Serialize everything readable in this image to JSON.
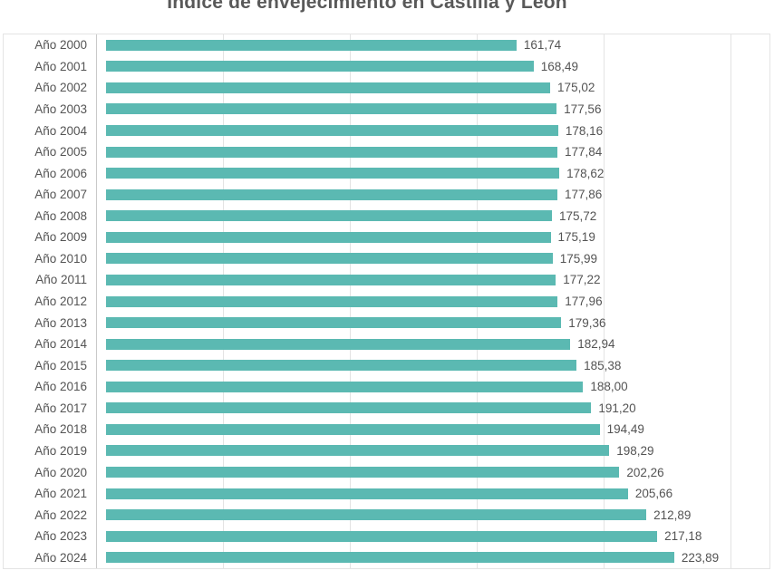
{
  "title": "Índice de envejecimiento en Castilla y León",
  "colors": {
    "bar": "#5bb9b2",
    "title_text": "#595959",
    "label_text": "#545454",
    "grid_line": "#e3e3e3",
    "axis_line": "#c9c9c9",
    "frame_border": "#e4e4e4",
    "background": "#ffffff"
  },
  "chart_data": {
    "type": "bar",
    "orientation": "horizontal",
    "title": "Índice de envejecimiento en Castilla y León",
    "categories": [
      "Año 2000",
      "Año 2001",
      "Año 2002",
      "Año 2003",
      "Año 2004",
      "Año 2005",
      "Año 2006",
      "Año 2007",
      "Año 2008",
      "Año 2009",
      "Año 2010",
      "Año 2011",
      "Año 2012",
      "Año 2013",
      "Año 2014",
      "Año 2015",
      "Año 2016",
      "Año 2017",
      "Año 2018",
      "Año 2019",
      "Año 2020",
      "Año 2021",
      "Año 2022",
      "Año 2023",
      "Año 2024"
    ],
    "values": [
      161.74,
      168.49,
      175.02,
      177.56,
      178.16,
      177.84,
      178.62,
      177.86,
      175.72,
      175.19,
      175.99,
      177.22,
      177.96,
      179.36,
      182.94,
      185.38,
      188.0,
      191.2,
      194.49,
      198.29,
      202.26,
      205.66,
      212.89,
      217.18,
      223.89
    ],
    "value_labels": [
      "161,74",
      "168,49",
      "175,02",
      "177,56",
      "178,16",
      "177,84",
      "178,62",
      "177,86",
      "175,72",
      "175,19",
      "175,99",
      "177,22",
      "177,96",
      "179,36",
      "182,94",
      "185,38",
      "188,00",
      "191,20",
      "194,49",
      "198,29",
      "202,26",
      "205,66",
      "212,89",
      "217,18",
      "223,89"
    ],
    "xlabel": "",
    "ylabel": "",
    "xlim": [
      0,
      250
    ],
    "gridline_step": 50,
    "grid": true,
    "legend_position": "none",
    "data_labels": true
  }
}
